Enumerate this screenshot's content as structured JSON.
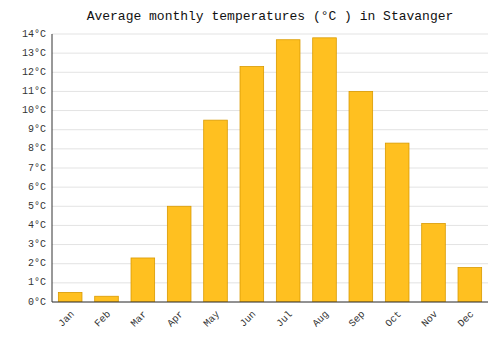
{
  "chart_data": {
    "type": "bar",
    "title": "Average monthly temperatures (°C ) in Stavanger",
    "categories": [
      "Jan",
      "Feb",
      "Mar",
      "Apr",
      "May",
      "Jun",
      "Jul",
      "Aug",
      "Sep",
      "Oct",
      "Nov",
      "Dec"
    ],
    "values": [
      0.5,
      0.3,
      2.3,
      5.0,
      9.5,
      12.3,
      13.7,
      13.8,
      11.0,
      8.3,
      4.1,
      1.8
    ],
    "color": "#FFC020",
    "ylim": [
      0,
      14
    ],
    "yticks": [
      {
        "value": 0,
        "label": "0°C"
      },
      {
        "value": 1,
        "label": "1°C"
      },
      {
        "value": 2,
        "label": "2°C"
      },
      {
        "value": 3,
        "label": "3°C"
      },
      {
        "value": 4,
        "label": "4°C"
      },
      {
        "value": 5,
        "label": "5°C"
      },
      {
        "value": 6,
        "label": "6°C"
      },
      {
        "value": 7,
        "label": "7°C"
      },
      {
        "value": 8,
        "label": "8°C"
      },
      {
        "value": 9,
        "label": "9°C"
      },
      {
        "value": 10,
        "label": "10°C"
      },
      {
        "value": 11,
        "label": "11°C"
      },
      {
        "value": 12,
        "label": "12°C"
      },
      {
        "value": 13,
        "label": "13°C"
      },
      {
        "value": 14,
        "label": "14°C"
      }
    ],
    "grid": true
  }
}
